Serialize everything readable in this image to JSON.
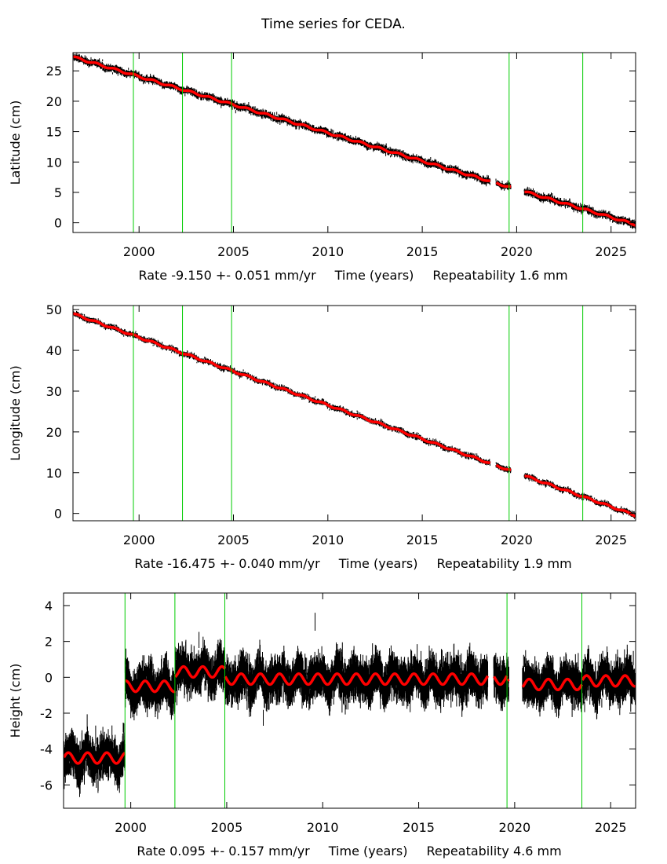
{
  "title": "Time series for CEDA.",
  "colors": {
    "data": "#000000",
    "model": "#ff0000",
    "event_line": "#00cc00",
    "frame": "#000000"
  },
  "chart_data": [
    {
      "type": "scatter",
      "id": "latitude",
      "ylabel": "Latitude (cm)",
      "xlabel": "Time (years)",
      "rate_text": "Rate -9.150 +- 0.051 mm/yr",
      "repeat_text": "Repeatability 1.6 mm",
      "xlim": [
        1996.5,
        2026.3
      ],
      "ylim": [
        -1.6,
        28.0
      ],
      "xticks": [
        2000,
        2005,
        2010,
        2015,
        2020,
        2025
      ],
      "yticks": [
        0,
        5,
        10,
        15,
        20,
        25
      ],
      "event_lines": [
        1999.7,
        2002.3,
        2004.9,
        2019.6,
        2023.5
      ],
      "gaps": [
        [
          2018.6,
          2018.9
        ],
        [
          2019.7,
          2020.4
        ]
      ],
      "model": {
        "start": [
          1996.5,
          27.3
        ],
        "end": [
          2026.3,
          -0.3
        ],
        "seasonal_amp": 0.15,
        "offsets": []
      },
      "scatter_sd": 0.25
    },
    {
      "type": "scatter",
      "id": "longitude",
      "ylabel": "Longitude (cm)",
      "xlabel": "Time (years)",
      "rate_text": "Rate -16.475 +- 0.040 mm/yr",
      "repeat_text": "Repeatability 1.9 mm",
      "xlim": [
        1996.5,
        2026.3
      ],
      "ylim": [
        -1.8,
        51.0
      ],
      "xticks": [
        2000,
        2005,
        2010,
        2015,
        2020,
        2025
      ],
      "yticks": [
        0,
        10,
        20,
        30,
        40,
        50
      ],
      "event_lines": [
        1999.7,
        2002.3,
        2004.9,
        2019.6,
        2023.5
      ],
      "gaps": [
        [
          2018.6,
          2018.9
        ],
        [
          2019.7,
          2020.4
        ]
      ],
      "model": {
        "start": [
          1996.5,
          49.0
        ],
        "end": [
          2026.3,
          -0.5
        ],
        "seasonal_amp": 0.2,
        "offsets": []
      },
      "scatter_sd": 0.3
    },
    {
      "type": "scatter",
      "id": "height",
      "ylabel": "Height (cm)",
      "xlabel": "Time (years)",
      "rate_text": "Rate 0.095 +- 0.157 mm/yr",
      "repeat_text": "Repeatability 4.6 mm",
      "xlim": [
        1996.5,
        2026.3
      ],
      "ylim": [
        -7.3,
        4.7
      ],
      "xticks": [
        2000,
        2005,
        2010,
        2015,
        2020,
        2025
      ],
      "yticks": [
        4,
        2,
        0,
        -2,
        -4,
        -6
      ],
      "event_lines": [
        1999.7,
        2002.3,
        2004.9,
        2019.6,
        2023.5
      ],
      "gaps": [
        [
          2018.6,
          2018.9
        ],
        [
          2019.7,
          2020.4
        ]
      ],
      "segments": [
        {
          "from": 1996.5,
          "to": 1999.7,
          "level": -4.5
        },
        {
          "from": 1999.7,
          "to": 2002.3,
          "level": -0.5
        },
        {
          "from": 2002.3,
          "to": 2004.9,
          "level": 0.3
        },
        {
          "from": 2004.9,
          "to": 2019.6,
          "level": -0.1
        },
        {
          "from": 2019.6,
          "to": 2023.5,
          "level": -0.4
        },
        {
          "from": 2023.5,
          "to": 2026.3,
          "level": -0.2
        }
      ],
      "model": {
        "seasonal_amp": 0.3
      },
      "scatter_sd": 0.45,
      "outlier": [
        2009.6,
        3.0
      ]
    }
  ]
}
